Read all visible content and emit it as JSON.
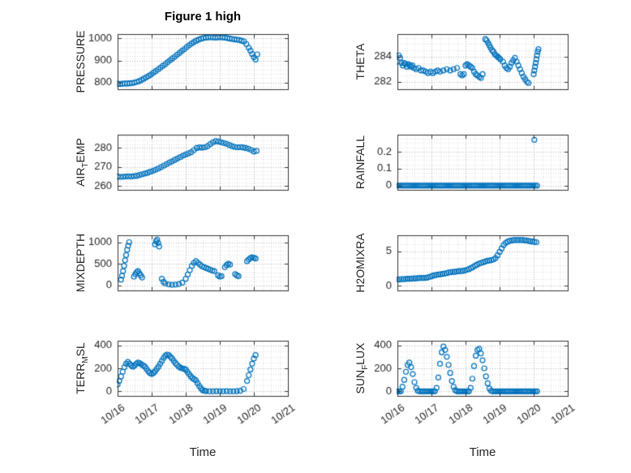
{
  "figure": {
    "title": "Figure 1 high",
    "xlabel": "Time",
    "background": "#ffffff",
    "marker_color": "#0072BD",
    "axis_color": "#333333",
    "text_color": "#262626",
    "grid_color": "rgba(38,38,38,0.35)",
    "minor_grid_color": "rgba(38,38,38,0.15)",
    "xlim": [
      0,
      5
    ],
    "xminor_step": 0.25,
    "xtick_values": [
      0,
      1,
      2,
      3,
      4,
      5
    ],
    "xtick_labels": [
      "10/16",
      "10/17",
      "10/18",
      "10/19",
      "10/20",
      "10/21"
    ]
  },
  "chart_data": [
    {
      "id": "pressure",
      "type": "scatter",
      "row": 0,
      "col": 0,
      "ylabel": "PRESSURE",
      "ylabel_parts": [
        {
          "text": "PRESSURE",
          "sub": false
        }
      ],
      "ylim": [
        770,
        1020
      ],
      "yticks": [
        800,
        900,
        1000
      ],
      "yminor": 20,
      "x": [
        0.0,
        0.07,
        0.14,
        0.21,
        0.28,
        0.35,
        0.42,
        0.49,
        0.56,
        0.63,
        0.7,
        0.77,
        0.84,
        0.91,
        0.98,
        1.05,
        1.12,
        1.19,
        1.26,
        1.33,
        1.4,
        1.47,
        1.54,
        1.61,
        1.68,
        1.75,
        1.82,
        1.89,
        1.96,
        2.03,
        2.1,
        2.17,
        2.24,
        2.31,
        2.38,
        2.45,
        2.52,
        2.59,
        2.66,
        2.73,
        2.8,
        2.87,
        2.94,
        3.01,
        3.08,
        3.15,
        3.22,
        3.29,
        3.36,
        3.43,
        3.5,
        3.57,
        3.64,
        3.71,
        3.78,
        3.85,
        3.9,
        3.95,
        4.0,
        4.05,
        4.1
      ],
      "y": [
        795,
        794,
        795,
        796,
        796,
        797,
        798,
        800,
        803,
        807,
        812,
        818,
        824,
        830,
        837,
        845,
        852,
        860,
        868,
        876,
        884,
        893,
        901,
        910,
        918,
        927,
        935,
        944,
        952,
        961,
        969,
        977,
        984,
        990,
        995,
        999,
        1002,
        1004,
        1005,
        1006,
        1005,
        1004,
        1005,
        1006,
        1005,
        1004,
        1002,
        1000,
        998,
        996,
        995,
        993,
        990,
        987,
        975,
        958,
        945,
        930,
        915,
        905,
        928
      ]
    },
    {
      "id": "airtemp",
      "type": "scatter",
      "row": 1,
      "col": 0,
      "ylabel": "AIR_TEMP",
      "ylabel_parts": [
        {
          "text": "AIR",
          "sub": false
        },
        {
          "text": "T",
          "sub": true
        },
        {
          "text": "EMP",
          "sub": false
        }
      ],
      "ylim": [
        258,
        287
      ],
      "yticks": [
        260,
        270,
        280
      ],
      "yminor": 2,
      "x": [
        0.0,
        0.08,
        0.16,
        0.24,
        0.32,
        0.4,
        0.48,
        0.56,
        0.64,
        0.72,
        0.8,
        0.88,
        0.96,
        1.04,
        1.12,
        1.2,
        1.28,
        1.36,
        1.44,
        1.52,
        1.6,
        1.68,
        1.76,
        1.84,
        1.92,
        2.0,
        2.08,
        2.16,
        2.24,
        2.32,
        2.4,
        2.48,
        2.56,
        2.64,
        2.72,
        2.8,
        2.88,
        2.96,
        3.04,
        3.12,
        3.2,
        3.28,
        3.36,
        3.44,
        3.52,
        3.6,
        3.68,
        3.76,
        3.84,
        3.92,
        4.0,
        4.08
      ],
      "y": [
        265.0,
        264.8,
        264.9,
        265.0,
        265.1,
        265.0,
        265.2,
        265.4,
        265.8,
        266.2,
        266.6,
        267.0,
        267.5,
        268.0,
        268.6,
        269.3,
        270.0,
        270.8,
        271.5,
        272.3,
        273.0,
        273.8,
        274.5,
        275.2,
        276.0,
        276.6,
        277.2,
        277.8,
        278.9,
        280.0,
        280.3,
        280.2,
        280.4,
        281.0,
        282.0,
        283.0,
        283.6,
        283.4,
        283.0,
        282.6,
        282.2,
        281.6,
        281.0,
        280.6,
        280.4,
        280.5,
        280.3,
        280.0,
        279.6,
        279.0,
        278.2,
        278.5
      ]
    },
    {
      "id": "mixdepth",
      "type": "scatter",
      "row": 2,
      "col": 0,
      "ylabel": "MIXDEPTH",
      "ylabel_parts": [
        {
          "text": "MIXDEPTH",
          "sub": false
        }
      ],
      "ylim": [
        -120,
        1160
      ],
      "yticks": [
        0,
        500,
        1000
      ],
      "yminor": 100,
      "x": [
        0.1,
        0.13,
        0.16,
        0.19,
        0.22,
        0.25,
        0.28,
        0.31,
        0.34,
        0.48,
        0.52,
        0.56,
        0.6,
        0.64,
        0.68,
        0.72,
        1.1,
        1.13,
        1.16,
        1.19,
        1.22,
        1.3,
        1.35,
        1.4,
        1.5,
        1.6,
        1.7,
        1.8,
        1.9,
        2.0,
        2.06,
        2.12,
        2.18,
        2.24,
        2.3,
        2.36,
        2.42,
        2.48,
        2.54,
        2.6,
        2.66,
        2.72,
        2.78,
        2.84,
        2.95,
        3.0,
        3.05,
        3.15,
        3.2,
        3.25,
        3.3,
        3.45,
        3.5,
        3.55,
        3.8,
        3.85,
        3.9,
        3.95,
        4.0,
        4.05
      ],
      "y": [
        130,
        220,
        330,
        450,
        580,
        700,
        820,
        920,
        1000,
        200,
        260,
        300,
        330,
        280,
        230,
        180,
        950,
        1020,
        1060,
        980,
        900,
        150,
        80,
        40,
        20,
        10,
        15,
        30,
        60,
        150,
        250,
        350,
        450,
        520,
        560,
        520,
        480,
        440,
        420,
        400,
        380,
        360,
        340,
        330,
        230,
        200,
        210,
        420,
        470,
        500,
        480,
        260,
        230,
        210,
        560,
        600,
        630,
        650,
        640,
        620
      ]
    },
    {
      "id": "terrmsl",
      "type": "scatter",
      "row": 3,
      "col": 0,
      "ylabel": "TERR_MSL",
      "ylabel_parts": [
        {
          "text": "TERR",
          "sub": false
        },
        {
          "text": "M",
          "sub": true
        },
        {
          "text": "SL",
          "sub": false
        }
      ],
      "ylim": [
        -40,
        440
      ],
      "yticks": [
        0,
        200,
        400
      ],
      "yminor": 50,
      "x": [
        0.0,
        0.05,
        0.1,
        0.15,
        0.2,
        0.25,
        0.3,
        0.35,
        0.4,
        0.45,
        0.5,
        0.55,
        0.6,
        0.65,
        0.7,
        0.75,
        0.8,
        0.85,
        0.9,
        0.95,
        1.0,
        1.05,
        1.1,
        1.15,
        1.2,
        1.25,
        1.3,
        1.35,
        1.4,
        1.45,
        1.5,
        1.55,
        1.6,
        1.65,
        1.7,
        1.75,
        1.8,
        1.85,
        1.9,
        1.95,
        2.0,
        2.05,
        2.1,
        2.15,
        2.2,
        2.25,
        2.3,
        2.35,
        2.4,
        2.45,
        2.5,
        2.55,
        2.6,
        2.7,
        2.8,
        2.9,
        3.0,
        3.1,
        3.2,
        3.3,
        3.4,
        3.5,
        3.6,
        3.7,
        3.8,
        3.85,
        3.9,
        3.95,
        4.0,
        4.05
      ],
      "y": [
        60,
        90,
        130,
        170,
        210,
        240,
        255,
        240,
        225,
        215,
        225,
        240,
        250,
        245,
        235,
        225,
        215,
        195,
        175,
        160,
        150,
        160,
        175,
        195,
        215,
        240,
        265,
        290,
        310,
        320,
        315,
        300,
        285,
        265,
        245,
        230,
        215,
        205,
        200,
        195,
        190,
        170,
        150,
        130,
        115,
        105,
        95,
        70,
        45,
        25,
        10,
        5,
        2,
        0,
        0,
        2,
        0,
        0,
        2,
        0,
        0,
        2,
        5,
        20,
        90,
        140,
        190,
        240,
        285,
        315
      ]
    },
    {
      "id": "theta",
      "type": "scatter",
      "row": 0,
      "col": 1,
      "ylabel": "THETA",
      "ylabel_parts": [
        {
          "text": "THETA",
          "sub": false
        }
      ],
      "ylim": [
        281.4,
        285.8
      ],
      "yticks": [
        282,
        284
      ],
      "yminor": 0.5,
      "x": [
        0.0,
        0.04,
        0.08,
        0.12,
        0.16,
        0.2,
        0.24,
        0.28,
        0.32,
        0.36,
        0.4,
        0.44,
        0.48,
        0.55,
        0.62,
        0.69,
        0.76,
        0.83,
        0.9,
        0.97,
        1.04,
        1.11,
        1.18,
        1.25,
        1.35,
        1.45,
        1.55,
        1.65,
        1.75,
        1.85,
        1.9,
        1.95,
        2.0,
        2.05,
        2.1,
        2.15,
        2.2,
        2.25,
        2.3,
        2.35,
        2.4,
        2.45,
        2.5,
        2.58,
        2.62,
        2.66,
        2.7,
        2.74,
        2.78,
        2.82,
        2.86,
        2.9,
        2.94,
        2.98,
        3.02,
        3.1,
        3.15,
        3.2,
        3.25,
        3.3,
        3.35,
        3.4,
        3.45,
        3.5,
        3.55,
        3.6,
        3.65,
        3.7,
        3.75,
        3.8,
        3.85,
        4.0,
        4.02,
        4.04,
        4.06,
        4.08,
        4.1,
        4.12,
        4.14
      ],
      "y": [
        283.6,
        284.1,
        283.9,
        283.5,
        283.3,
        283.5,
        283.4,
        283.2,
        283.4,
        283.3,
        283.2,
        283.3,
        283.1,
        283.0,
        283.1,
        282.9,
        282.9,
        282.8,
        282.7,
        282.8,
        282.7,
        282.8,
        282.9,
        282.8,
        282.9,
        283.0,
        282.9,
        283.0,
        283.1,
        282.6,
        282.5,
        282.6,
        283.3,
        283.4,
        283.3,
        283.2,
        283.1,
        282.8,
        282.6,
        282.5,
        282.4,
        282.3,
        282.6,
        285.4,
        285.3,
        285.1,
        284.9,
        284.7,
        284.5,
        284.4,
        284.2,
        284.1,
        284.0,
        283.9,
        283.8,
        283.6,
        283.3,
        283.1,
        283.0,
        283.2,
        283.5,
        283.7,
        283.9,
        283.6,
        283.3,
        283.0,
        282.7,
        282.4,
        282.2,
        282.0,
        281.9,
        282.6,
        282.9,
        283.2,
        283.5,
        283.8,
        284.1,
        284.4,
        284.6
      ]
    },
    {
      "id": "rainfall",
      "type": "scatter",
      "row": 1,
      "col": 1,
      "ylabel": "RAINFALL",
      "ylabel_parts": [
        {
          "text": "RAINFALL",
          "sub": false
        }
      ],
      "ylim": [
        -0.025,
        0.3
      ],
      "yticks": [
        0,
        0.1,
        0.2
      ],
      "yminor": 0.025,
      "x": [
        0.0,
        0.05,
        0.1,
        0.15,
        0.2,
        0.25,
        0.3,
        0.35,
        0.4,
        0.45,
        0.5,
        0.55,
        0.6,
        0.65,
        0.7,
        0.75,
        0.8,
        0.85,
        0.9,
        0.95,
        1.0,
        1.05,
        1.1,
        1.15,
        1.2,
        1.25,
        1.3,
        1.35,
        1.4,
        1.45,
        1.5,
        1.55,
        1.6,
        1.65,
        1.7,
        1.75,
        1.8,
        1.85,
        1.9,
        1.95,
        2.0,
        2.05,
        2.1,
        2.15,
        2.2,
        2.25,
        2.3,
        2.35,
        2.4,
        2.45,
        2.5,
        2.55,
        2.6,
        2.65,
        2.7,
        2.75,
        2.8,
        2.85,
        2.9,
        2.95,
        3.0,
        3.05,
        3.1,
        3.15,
        3.2,
        3.25,
        3.3,
        3.35,
        3.4,
        3.45,
        3.5,
        3.55,
        3.6,
        3.65,
        3.7,
        3.75,
        3.8,
        3.85,
        3.9,
        3.95,
        4.0,
        4.05,
        4.1,
        4.02
      ],
      "y": [
        0,
        0,
        0,
        0,
        0,
        0,
        0,
        0,
        0,
        0,
        0,
        0,
        0,
        0,
        0,
        0,
        0,
        0,
        0,
        0,
        0,
        0,
        0,
        0,
        0,
        0,
        0,
        0,
        0,
        0,
        0,
        0,
        0,
        0,
        0,
        0,
        0,
        0,
        0,
        0,
        0,
        0,
        0,
        0,
        0,
        0,
        0,
        0,
        0,
        0,
        0,
        0,
        0,
        0,
        0,
        0,
        0,
        0,
        0,
        0,
        0,
        0,
        0,
        0,
        0,
        0,
        0,
        0,
        0,
        0,
        0,
        0,
        0,
        0,
        0,
        0,
        0,
        0,
        0,
        0,
        0,
        0,
        0,
        0.27
      ]
    },
    {
      "id": "h2omixra",
      "type": "scatter",
      "row": 2,
      "col": 1,
      "ylabel": "H2OMIXRA",
      "ylabel_parts": [
        {
          "text": "H2OMIXRA",
          "sub": false
        }
      ],
      "ylim": [
        -0.7,
        7.3
      ],
      "yticks": [
        0,
        5
      ],
      "yminor": 1,
      "x": [
        0.0,
        0.06,
        0.12,
        0.18,
        0.24,
        0.3,
        0.36,
        0.42,
        0.48,
        0.54,
        0.6,
        0.66,
        0.72,
        0.78,
        0.84,
        0.9,
        0.96,
        1.02,
        1.08,
        1.14,
        1.2,
        1.26,
        1.32,
        1.38,
        1.44,
        1.5,
        1.56,
        1.62,
        1.68,
        1.74,
        1.8,
        1.86,
        1.92,
        1.98,
        2.04,
        2.1,
        2.16,
        2.22,
        2.28,
        2.34,
        2.4,
        2.46,
        2.52,
        2.58,
        2.64,
        2.7,
        2.76,
        2.82,
        2.88,
        2.94,
        3.0,
        3.06,
        3.12,
        3.18,
        3.24,
        3.3,
        3.36,
        3.42,
        3.48,
        3.54,
        3.6,
        3.66,
        3.72,
        3.78,
        3.84,
        3.9,
        3.96,
        4.02,
        4.08
      ],
      "y": [
        0.9,
        0.92,
        0.95,
        0.95,
        0.97,
        1.0,
        1.0,
        1.02,
        1.05,
        1.05,
        1.08,
        1.1,
        1.1,
        1.12,
        1.15,
        1.2,
        1.3,
        1.4,
        1.5,
        1.55,
        1.6,
        1.65,
        1.7,
        1.75,
        1.8,
        1.9,
        1.95,
        2.0,
        2.0,
        2.05,
        2.1,
        2.1,
        2.15,
        2.2,
        2.3,
        2.4,
        2.55,
        2.7,
        2.9,
        3.05,
        3.2,
        3.3,
        3.4,
        3.5,
        3.6,
        3.65,
        3.7,
        3.8,
        4.0,
        4.4,
        4.9,
        5.4,
        5.9,
        6.2,
        6.4,
        6.5,
        6.55,
        6.6,
        6.6,
        6.6,
        6.62,
        6.6,
        6.58,
        6.55,
        6.5,
        6.45,
        6.4,
        6.35,
        6.3
      ]
    },
    {
      "id": "sunflux",
      "type": "scatter",
      "row": 3,
      "col": 1,
      "ylabel": "SUN_FLUX",
      "ylabel_parts": [
        {
          "text": "SUN",
          "sub": false
        },
        {
          "text": "F",
          "sub": true
        },
        {
          "text": "LUX",
          "sub": false
        }
      ],
      "ylim": [
        -40,
        440
      ],
      "yticks": [
        0,
        200,
        400
      ],
      "yminor": 50,
      "x": [
        0.0,
        0.05,
        0.1,
        0.15,
        0.2,
        0.25,
        0.3,
        0.35,
        0.4,
        0.45,
        0.5,
        0.55,
        0.6,
        0.65,
        0.7,
        0.75,
        0.8,
        0.85,
        0.9,
        0.95,
        1.0,
        1.05,
        1.1,
        1.15,
        1.2,
        1.25,
        1.3,
        1.35,
        1.4,
        1.45,
        1.5,
        1.55,
        1.6,
        1.65,
        1.7,
        1.75,
        1.8,
        1.85,
        1.9,
        1.95,
        2.0,
        2.05,
        2.1,
        2.15,
        2.2,
        2.25,
        2.3,
        2.35,
        2.4,
        2.45,
        2.5,
        2.55,
        2.6,
        2.65,
        2.7,
        2.75,
        2.8,
        2.85,
        2.9,
        2.95,
        3.0,
        3.05,
        3.1,
        3.15,
        3.2,
        3.25,
        3.3,
        3.35,
        3.4,
        3.45,
        3.5,
        3.55,
        3.6,
        3.65,
        3.7,
        3.75,
        3.8,
        3.85,
        3.9,
        3.95,
        4.0,
        4.05,
        4.1
      ],
      "y": [
        0,
        0,
        0,
        40,
        100,
        170,
        230,
        250,
        210,
        150,
        80,
        30,
        5,
        0,
        0,
        0,
        0,
        0,
        0,
        0,
        0,
        0,
        0,
        30,
        120,
        240,
        340,
        390,
        360,
        300,
        230,
        160,
        90,
        40,
        10,
        0,
        0,
        0,
        0,
        0,
        0,
        0,
        0,
        30,
        110,
        220,
        310,
        360,
        370,
        330,
        270,
        200,
        130,
        70,
        25,
        5,
        0,
        0,
        0,
        0,
        0,
        0,
        0,
        0,
        0,
        0,
        0,
        0,
        0,
        0,
        0,
        0,
        0,
        0,
        0,
        0,
        0,
        0,
        0,
        0,
        0,
        0,
        0
      ]
    }
  ]
}
